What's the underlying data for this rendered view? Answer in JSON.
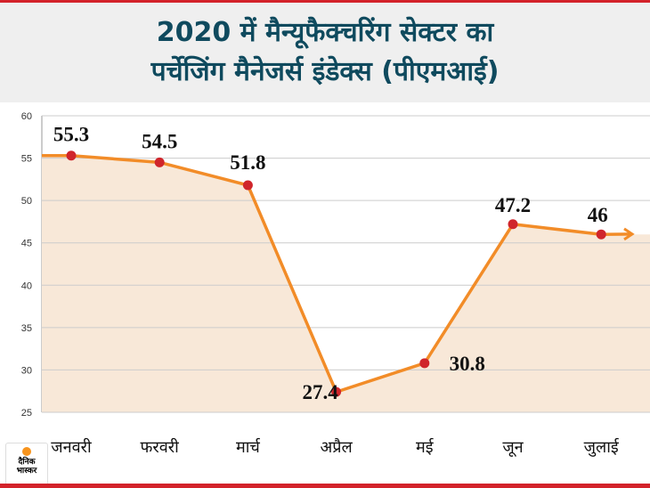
{
  "title_lines": [
    "2020 में मैन्यूफैक्चरिंग सेक्टर का",
    "पर्चेजिंग मैनेजर्स इंडेक्स (पीएमआई)"
  ],
  "logo": {
    "line1": "दैनिक",
    "line2": "भास्कर"
  },
  "colors": {
    "line": "#f28c28",
    "point": "#d0252b",
    "fill": "#f8e8d8",
    "title": "#0f4a5e",
    "accent": "#d3222a"
  },
  "chart_data": {
    "type": "line",
    "title": "2020 में मैन्यूफैक्चरिंग सेक्टर का पर्चेजिंग मैनेजर्स इंडेक्स (पीएमआई)",
    "categories": [
      "जनवरी",
      "फरवरी",
      "मार्च",
      "अप्रैल",
      "मई",
      "जून",
      "जुलाई"
    ],
    "values": [
      55.3,
      54.5,
      51.8,
      27.4,
      30.8,
      47.2,
      46
    ],
    "labels": [
      "55.3",
      "54.5",
      "51.8",
      "27.4",
      "30.8",
      "47.2",
      "46"
    ],
    "yticks": [
      60,
      55,
      50,
      45,
      40,
      35,
      30,
      25
    ],
    "ylim": [
      25,
      60
    ],
    "grid": true,
    "area_fill": true
  }
}
